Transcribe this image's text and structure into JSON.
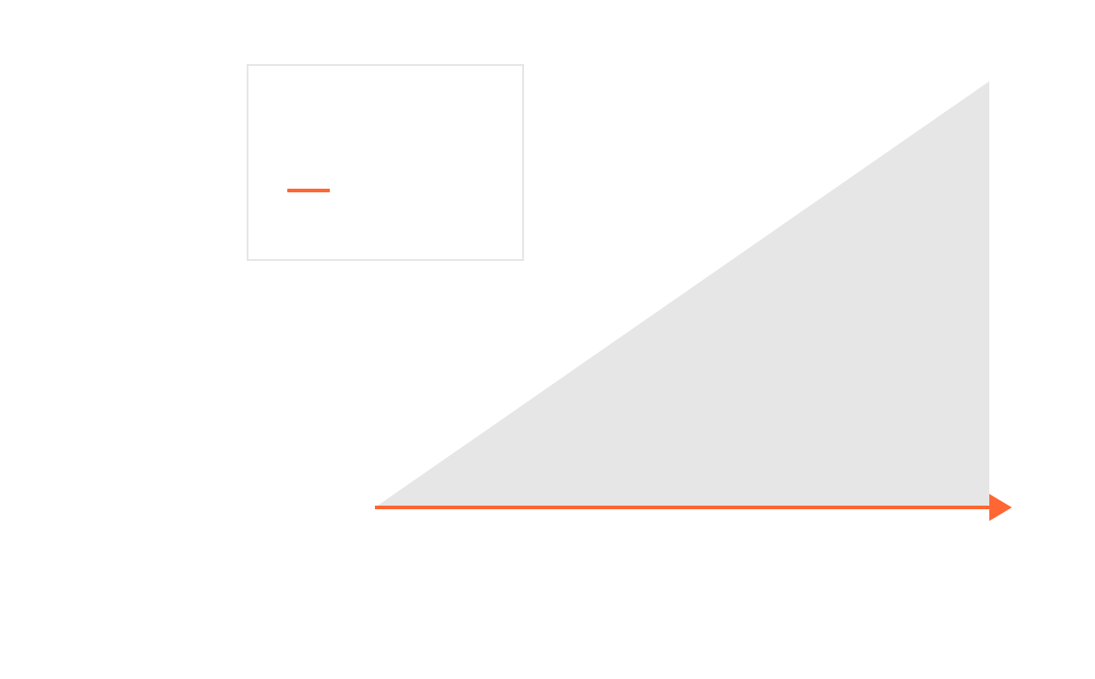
{
  "colors": {
    "background": "#ffffff",
    "triangle_fill": "#e6e6e6",
    "arrow": "#ff6633",
    "legend_border": "#e6e6e6"
  },
  "legend": {
    "items": [
      {
        "label": "",
        "color": "#ff6633",
        "marker": "line"
      }
    ]
  },
  "shapes": {
    "triangle": {
      "type": "right-triangle",
      "fill": "#e6e6e6"
    },
    "arrow": {
      "direction": "right",
      "color": "#ff6633"
    }
  }
}
